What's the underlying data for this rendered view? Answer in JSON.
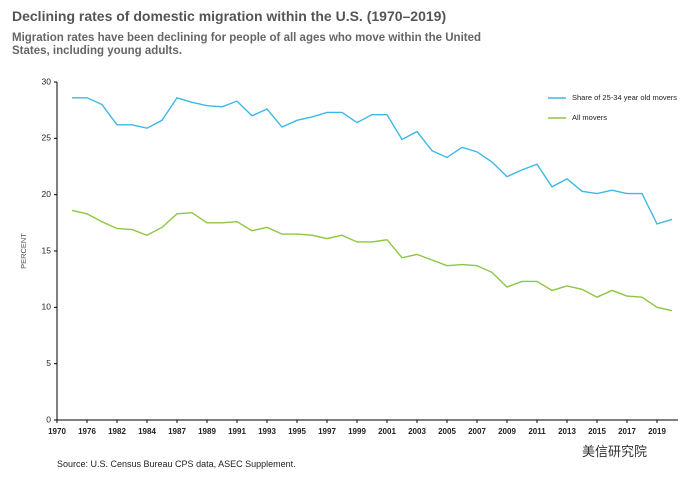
{
  "chart_data": {
    "type": "line",
    "title": "Declining rates of domestic migration within the U.S. (1970–2019)",
    "subtitle": "Migration rates have been declining for people of all ages who move within the United States, including young adults.",
    "y_label": "PERCENT",
    "source": "Source: U.S. Census Bureau CPS data, ASEC Supplement.",
    "watermark": "美信研究院",
    "categories": [
      "1970",
      null,
      "1976",
      null,
      "1982",
      null,
      "1984",
      null,
      "1987",
      null,
      "1989",
      null,
      "1991",
      null,
      "1993",
      null,
      "1995",
      null,
      "1997",
      null,
      "1999",
      null,
      "2001",
      null,
      "2003",
      null,
      "2005",
      null,
      "2007",
      null,
      "2009",
      null,
      "2011",
      null,
      "2013",
      null,
      "2015",
      null,
      "2017",
      null,
      "2019",
      null
    ],
    "series": [
      {
        "name": "Share of 25-34 year old movers",
        "color": "#3db8e6",
        "values": [
          null,
          28.6,
          28.6,
          28.0,
          26.2,
          26.2,
          25.9,
          26.6,
          28.6,
          28.2,
          27.9,
          27.8,
          28.3,
          27.0,
          27.6,
          26.0,
          26.6,
          26.9,
          27.3,
          27.3,
          26.4,
          27.1,
          27.1,
          24.9,
          25.6,
          23.9,
          23.3,
          24.2,
          23.8,
          22.9,
          21.6,
          22.2,
          22.7,
          20.7,
          21.4,
          20.3,
          20.1,
          20.4,
          20.1,
          20.1,
          17.4,
          17.8
        ]
      },
      {
        "name": "All movers",
        "color": "#8dc641",
        "values": [
          null,
          18.6,
          18.3,
          17.6,
          17.0,
          16.9,
          16.4,
          17.1,
          18.3,
          18.4,
          17.5,
          17.5,
          17.6,
          16.8,
          17.1,
          16.5,
          16.5,
          16.4,
          16.1,
          16.4,
          15.8,
          15.8,
          16.0,
          14.4,
          14.7,
          14.2,
          13.7,
          13.8,
          13.7,
          13.1,
          11.8,
          12.3,
          12.3,
          11.5,
          11.9,
          11.6,
          10.9,
          11.5,
          11.0,
          10.9,
          10.0,
          9.7
        ]
      }
    ],
    "ylim": [
      0,
      30
    ],
    "yticks": [
      0,
      5,
      10,
      15,
      20,
      25,
      30
    ],
    "grid": false,
    "legend": "upper right"
  }
}
